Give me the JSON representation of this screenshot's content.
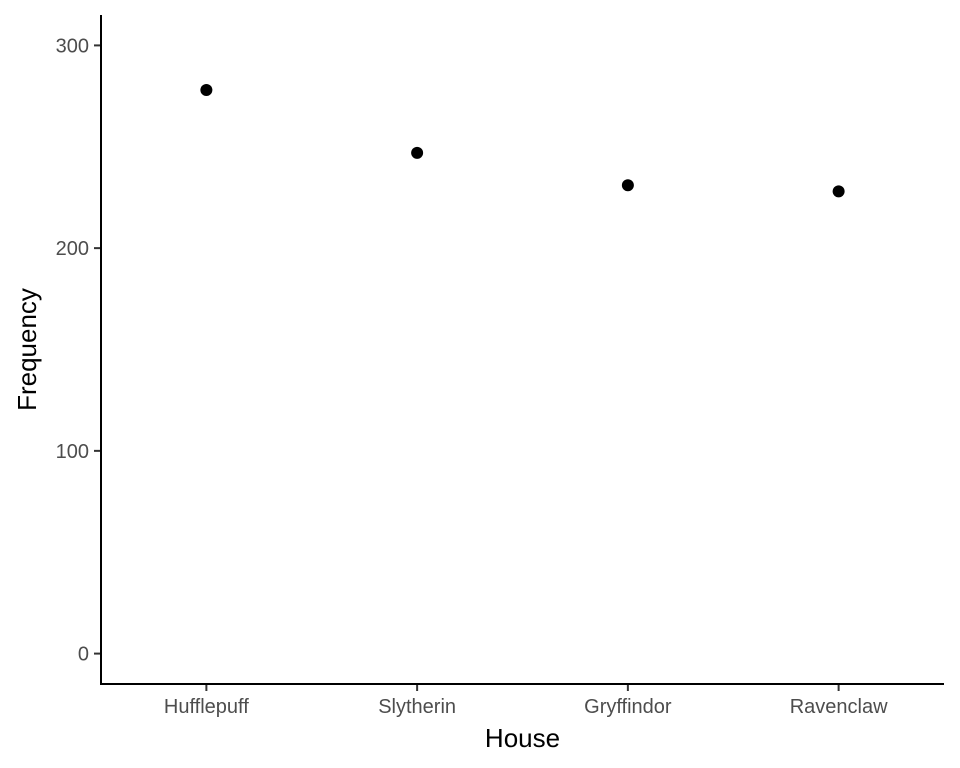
{
  "chart_data": {
    "type": "scatter",
    "title": "",
    "xlabel": "House",
    "ylabel": "Frequency",
    "categories": [
      "Hufflepuff",
      "Slytherin",
      "Gryffindor",
      "Ravenclaw"
    ],
    "series": [
      {
        "values": [
          278,
          247,
          231,
          228
        ]
      }
    ],
    "ylim": [
      -15,
      315
    ],
    "yticks": [
      0,
      100,
      200,
      300
    ],
    "grid": false,
    "legend": "none",
    "colors": {
      "point": "#000000",
      "axis": "#000000",
      "tick_label": "#4d4d4d"
    }
  }
}
